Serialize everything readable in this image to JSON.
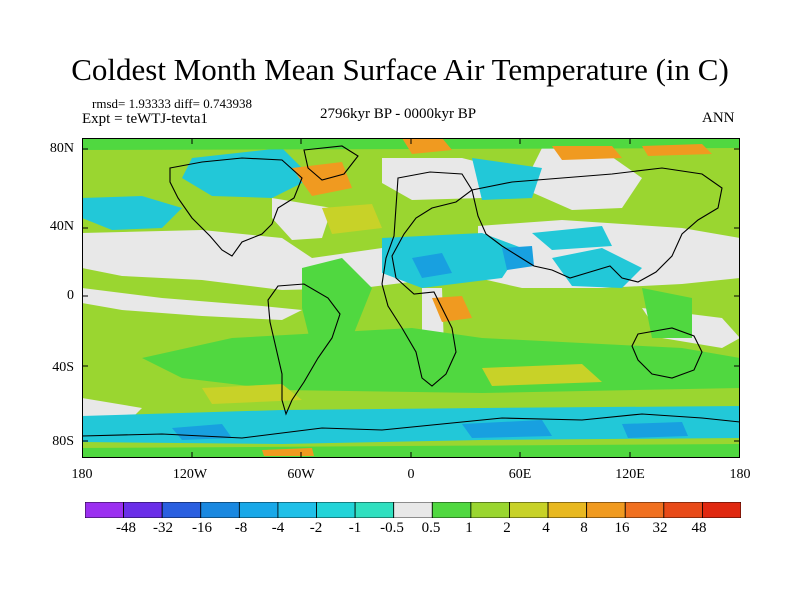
{
  "title": "Coldest Month Mean Surface Air Temperature (in C)",
  "stats": "rmsd= 1.93333 diff= 0.743938",
  "experiment": "Expt = teWTJ-tevta1",
  "period": "2796kyr BP - 0000kyr BP",
  "season": "ANN",
  "lat_labels": [
    "80N",
    "40N",
    "0",
    "40S",
    "80S"
  ],
  "lon_labels": [
    "180",
    "120W",
    "60W",
    "0",
    "60E",
    "120E",
    "180"
  ],
  "colorbar": {
    "labels": [
      "-48",
      "-32",
      "-16",
      "-8",
      "-4",
      "-2",
      "-1",
      "-0.5",
      "0.5",
      "1",
      "2",
      "4",
      "8",
      "16",
      "32",
      "48"
    ],
    "colors": [
      "#9b2ff0",
      "#6a2ee8",
      "#2a5fe0",
      "#1a88e0",
      "#18a8e8",
      "#20c0e8",
      "#22d4d8",
      "#30e0c0",
      "#e8e8e8",
      "#50d840",
      "#9ad630",
      "#c8d228",
      "#e8b820",
      "#f09a20",
      "#f07020",
      "#e84a18",
      "#e02810"
    ]
  },
  "colors": {
    "ocean_base": "#9ad630",
    "neutral": "#e8e8e8",
    "green": "#50d840",
    "cyan": "#22c8d8",
    "blue": "#18a0e0",
    "orange": "#f09a20",
    "yellow": "#c8d228",
    "coast": "#000000"
  }
}
